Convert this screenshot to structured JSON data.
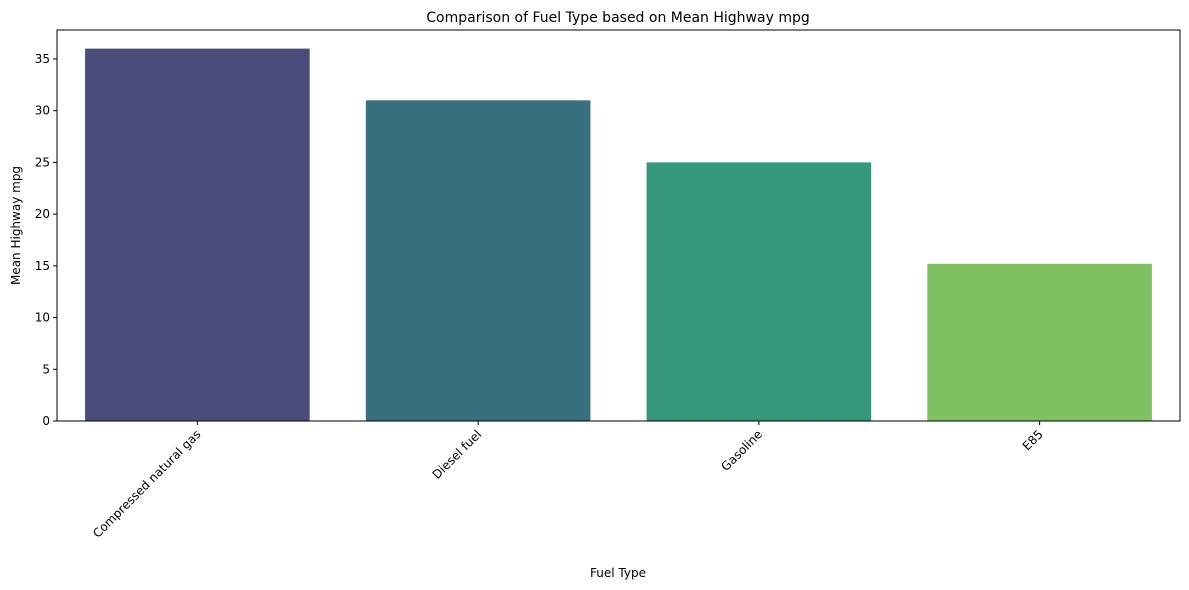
{
  "chart_data": {
    "type": "bar",
    "title": "Comparison of Fuel Type based on Mean Highway mpg",
    "xlabel": "Fuel Type",
    "ylabel": "Mean Highway mpg",
    "categories": [
      "Compressed natural gas",
      "Diesel fuel",
      "Gasoline",
      "E85"
    ],
    "values": [
      36,
      31,
      25,
      15.2
    ],
    "colors": [
      "#4a4c7c",
      "#37717f",
      "#35977a",
      "#80c263"
    ],
    "ylim": [
      0,
      37.8
    ],
    "yticks": [
      0,
      5,
      10,
      15,
      20,
      25,
      30,
      35
    ],
    "grid": false,
    "legend": "none"
  }
}
